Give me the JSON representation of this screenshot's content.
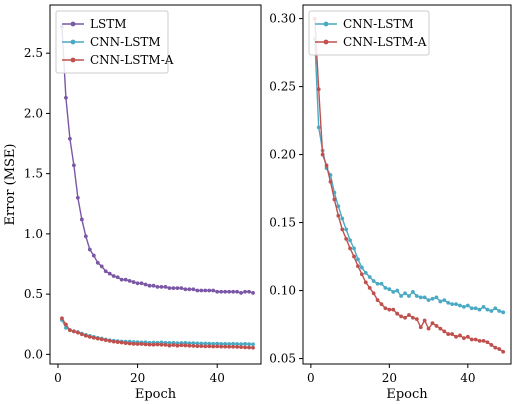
{
  "chart_data": [
    {
      "type": "line",
      "xlabel": "Epoch",
      "ylabel": "Error (MSE)",
      "xlim": [
        -2,
        51
      ],
      "ylim": [
        -0.08,
        2.9
      ],
      "xticks": [
        0,
        20,
        40
      ],
      "yticks": [
        0.0,
        0.5,
        1.0,
        1.5,
        2.0,
        2.5
      ],
      "ytick_labels": [
        "0.0",
        "0.5",
        "1.0",
        "1.5",
        "2.0",
        "2.5"
      ],
      "xtick_labels": [
        "0",
        "20",
        "40"
      ],
      "legend": "top-left",
      "series": [
        {
          "name": "LSTM",
          "color": "#7b58a6",
          "x": [
            1,
            2,
            3,
            4,
            5,
            6,
            7,
            8,
            9,
            10,
            11,
            12,
            13,
            14,
            15,
            16,
            17,
            18,
            19,
            20,
            21,
            22,
            23,
            24,
            25,
            26,
            27,
            28,
            29,
            30,
            31,
            32,
            33,
            34,
            35,
            36,
            37,
            38,
            39,
            40,
            41,
            42,
            43,
            44,
            45,
            46,
            47,
            48,
            49
          ],
          "values": [
            2.72,
            2.13,
            1.79,
            1.57,
            1.3,
            1.12,
            0.98,
            0.87,
            0.82,
            0.76,
            0.73,
            0.69,
            0.67,
            0.65,
            0.64,
            0.62,
            0.62,
            0.61,
            0.6,
            0.59,
            0.59,
            0.58,
            0.57,
            0.57,
            0.56,
            0.56,
            0.56,
            0.55,
            0.55,
            0.55,
            0.55,
            0.54,
            0.54,
            0.54,
            0.53,
            0.53,
            0.53,
            0.53,
            0.53,
            0.52,
            0.52,
            0.52,
            0.52,
            0.52,
            0.52,
            0.51,
            0.52,
            0.52,
            0.51
          ]
        },
        {
          "name": "CNN-LSTM",
          "color": "#4aa9c3",
          "x": [
            1,
            2,
            3,
            4,
            5,
            6,
            7,
            8,
            9,
            10,
            11,
            12,
            13,
            14,
            15,
            16,
            17,
            18,
            19,
            20,
            21,
            22,
            23,
            24,
            25,
            26,
            27,
            28,
            29,
            30,
            31,
            32,
            33,
            34,
            35,
            36,
            37,
            38,
            39,
            40,
            41,
            42,
            43,
            44,
            45,
            46,
            47,
            48,
            49
          ],
          "values": [
            0.285,
            0.22,
            0.203,
            0.19,
            0.185,
            0.172,
            0.162,
            0.153,
            0.145,
            0.137,
            0.131,
            0.123,
            0.117,
            0.113,
            0.11,
            0.107,
            0.105,
            0.105,
            0.102,
            0.101,
            0.099,
            0.1,
            0.096,
            0.098,
            0.096,
            0.099,
            0.096,
            0.095,
            0.095,
            0.093,
            0.094,
            0.095,
            0.092,
            0.093,
            0.091,
            0.09,
            0.09,
            0.089,
            0.088,
            0.089,
            0.087,
            0.087,
            0.086,
            0.088,
            0.086,
            0.085,
            0.087,
            0.085,
            0.084
          ]
        },
        {
          "name": "CNN-LSTM-A",
          "color": "#c0504d",
          "x": [
            1,
            2,
            3,
            4,
            5,
            6,
            7,
            8,
            9,
            10,
            11,
            12,
            13,
            14,
            15,
            16,
            17,
            18,
            19,
            20,
            21,
            22,
            23,
            24,
            25,
            26,
            27,
            28,
            29,
            30,
            31,
            32,
            33,
            34,
            35,
            36,
            37,
            38,
            39,
            40,
            41,
            42,
            43,
            44,
            45,
            46,
            47,
            48,
            49
          ],
          "values": [
            0.3,
            0.248,
            0.2,
            0.192,
            0.18,
            0.167,
            0.155,
            0.145,
            0.138,
            0.131,
            0.125,
            0.118,
            0.112,
            0.106,
            0.102,
            0.098,
            0.093,
            0.09,
            0.087,
            0.086,
            0.086,
            0.083,
            0.081,
            0.08,
            0.082,
            0.08,
            0.079,
            0.073,
            0.078,
            0.072,
            0.076,
            0.074,
            0.072,
            0.07,
            0.068,
            0.068,
            0.066,
            0.067,
            0.065,
            0.066,
            0.064,
            0.064,
            0.063,
            0.063,
            0.062,
            0.06,
            0.058,
            0.057,
            0.055
          ]
        }
      ]
    },
    {
      "type": "line",
      "xlabel": "Epoch",
      "ylabel": "",
      "xlim": [
        -2,
        51
      ],
      "ylim": [
        0.046,
        0.31
      ],
      "xticks": [
        0,
        20,
        40
      ],
      "yticks": [
        0.05,
        0.1,
        0.15,
        0.2,
        0.25,
        0.3
      ],
      "ytick_labels": [
        "0.05",
        "0.10",
        "0.15",
        "0.20",
        "0.25",
        "0.30"
      ],
      "xtick_labels": [
        "0",
        "20",
        "40"
      ],
      "legend": "top-left",
      "series": [
        {
          "name": "CNN-LSTM",
          "color": "#4aa9c3",
          "x": [
            1,
            2,
            3,
            4,
            5,
            6,
            7,
            8,
            9,
            10,
            11,
            12,
            13,
            14,
            15,
            16,
            17,
            18,
            19,
            20,
            21,
            22,
            23,
            24,
            25,
            26,
            27,
            28,
            29,
            30,
            31,
            32,
            33,
            34,
            35,
            36,
            37,
            38,
            39,
            40,
            41,
            42,
            43,
            44,
            45,
            46,
            47,
            48,
            49
          ],
          "values": [
            0.285,
            0.22,
            0.203,
            0.19,
            0.185,
            0.172,
            0.162,
            0.153,
            0.145,
            0.137,
            0.131,
            0.123,
            0.117,
            0.113,
            0.11,
            0.107,
            0.105,
            0.105,
            0.102,
            0.101,
            0.099,
            0.1,
            0.096,
            0.098,
            0.096,
            0.099,
            0.096,
            0.095,
            0.095,
            0.093,
            0.094,
            0.095,
            0.092,
            0.093,
            0.091,
            0.09,
            0.09,
            0.089,
            0.088,
            0.089,
            0.087,
            0.087,
            0.086,
            0.088,
            0.086,
            0.085,
            0.087,
            0.085,
            0.084
          ]
        },
        {
          "name": "CNN-LSTM-A",
          "color": "#c0504d",
          "x": [
            1,
            2,
            3,
            4,
            5,
            6,
            7,
            8,
            9,
            10,
            11,
            12,
            13,
            14,
            15,
            16,
            17,
            18,
            19,
            20,
            21,
            22,
            23,
            24,
            25,
            26,
            27,
            28,
            29,
            30,
            31,
            32,
            33,
            34,
            35,
            36,
            37,
            38,
            39,
            40,
            41,
            42,
            43,
            44,
            45,
            46,
            47,
            48,
            49
          ],
          "values": [
            0.3,
            0.248,
            0.2,
            0.192,
            0.18,
            0.167,
            0.155,
            0.145,
            0.138,
            0.131,
            0.125,
            0.118,
            0.112,
            0.106,
            0.102,
            0.098,
            0.093,
            0.09,
            0.087,
            0.086,
            0.086,
            0.083,
            0.081,
            0.08,
            0.082,
            0.08,
            0.079,
            0.073,
            0.078,
            0.072,
            0.076,
            0.074,
            0.072,
            0.07,
            0.068,
            0.068,
            0.066,
            0.067,
            0.065,
            0.066,
            0.064,
            0.064,
            0.063,
            0.063,
            0.062,
            0.06,
            0.058,
            0.057,
            0.055
          ]
        }
      ]
    }
  ]
}
